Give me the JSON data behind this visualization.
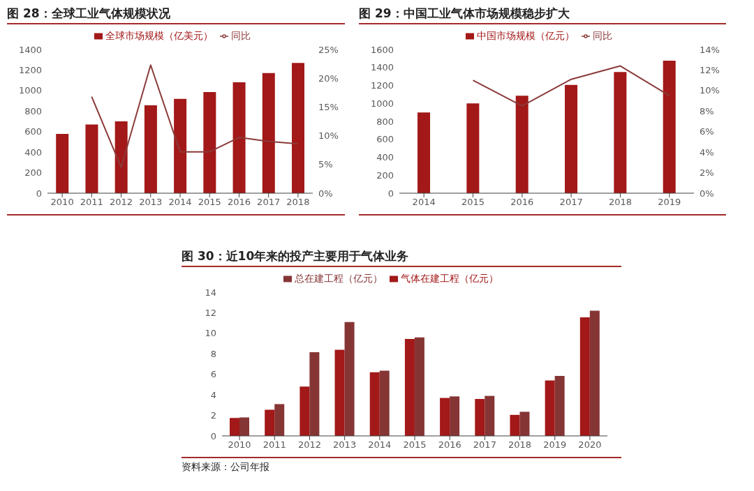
{
  "chart_data": [
    {
      "type": "bar",
      "title": "图 28：全球工业气体规模状况",
      "categories": [
        "2010",
        "2011",
        "2012",
        "2013",
        "2014",
        "2015",
        "2016",
        "2017",
        "2018"
      ],
      "series": [
        {
          "name": "全球市场规模（亿美元）",
          "color": "#a31818",
          "values": [
            578,
            670,
            700,
            857,
            920,
            985,
            1080,
            1170,
            1270
          ]
        },
        {
          "name": "同比",
          "type": "line",
          "axis": "y2",
          "color": "#8b3a3a",
          "values": [
            null,
            16.8,
            4.5,
            22.3,
            7.2,
            7.2,
            9.7,
            9.0,
            8.6
          ]
        }
      ],
      "ylim": [
        0,
        1400
      ],
      "yticks": [
        0,
        200,
        400,
        600,
        800,
        1000,
        1200,
        1400
      ],
      "y2lim": [
        0,
        25
      ],
      "y2ticks": [
        {
          "value": 0,
          "label": "0%"
        },
        {
          "value": 5,
          "label": "5%"
        },
        {
          "value": 10,
          "label": "10%"
        },
        {
          "value": 15,
          "label": "15%"
        },
        {
          "value": 20,
          "label": "20%"
        },
        {
          "value": 25,
          "label": "25%"
        }
      ],
      "grid": false,
      "legend": "top",
      "marker": "none"
    },
    {
      "type": "bar",
      "title": "图 29：中国工业气体市场规模稳步扩大",
      "categories": [
        "2014",
        "2015",
        "2016",
        "2017",
        "2018",
        "2019"
      ],
      "series": [
        {
          "name": "中国市场规模（亿元）",
          "color": "#a31818",
          "values": [
            900,
            1000,
            1085,
            1205,
            1350,
            1475
          ]
        },
        {
          "name": "同比",
          "type": "line",
          "axis": "y2",
          "color": "#8b3a3a",
          "values": [
            null,
            11.0,
            8.5,
            11.1,
            12.4,
            9.5
          ]
        }
      ],
      "ylim": [
        0,
        1600
      ],
      "yticks": [
        0,
        200,
        400,
        600,
        800,
        1000,
        1200,
        1400,
        1600
      ],
      "y2lim": [
        0,
        14
      ],
      "y2ticks": [
        {
          "value": 0,
          "label": "0%"
        },
        {
          "value": 2,
          "label": "2%"
        },
        {
          "value": 4,
          "label": "4%"
        },
        {
          "value": 6,
          "label": "6%"
        },
        {
          "value": 8,
          "label": "8%"
        },
        {
          "value": 10,
          "label": "10%"
        },
        {
          "value": 12,
          "label": "12%"
        },
        {
          "value": 14,
          "label": "14%"
        }
      ],
      "grid": false,
      "legend": "top",
      "marker": "none"
    },
    {
      "type": "bar",
      "title": "图 30：近10年来的投产主要用于气体业务",
      "categories": [
        "2010",
        "2011",
        "2012",
        "2013",
        "2014",
        "2015",
        "2016",
        "2017",
        "2018",
        "2019",
        "2020"
      ],
      "series": [
        {
          "name": "气体在建工程（亿元）",
          "color": "#a31818",
          "values": [
            1.75,
            2.55,
            4.8,
            8.4,
            6.2,
            9.45,
            3.7,
            3.6,
            2.05,
            5.4,
            11.55
          ]
        },
        {
          "name": "总在建工程（亿元）",
          "color": "#863535",
          "values": [
            1.8,
            3.1,
            8.15,
            11.1,
            6.35,
            9.6,
            3.85,
            3.9,
            2.35,
            5.85,
            12.2
          ]
        }
      ],
      "ylim": [
        0,
        14
      ],
      "yticks": [
        0,
        2,
        4,
        6,
        8,
        10,
        12,
        14
      ],
      "grid": false,
      "legend": "top",
      "annotations": [
        "资料来源：公司年报"
      ]
    }
  ]
}
